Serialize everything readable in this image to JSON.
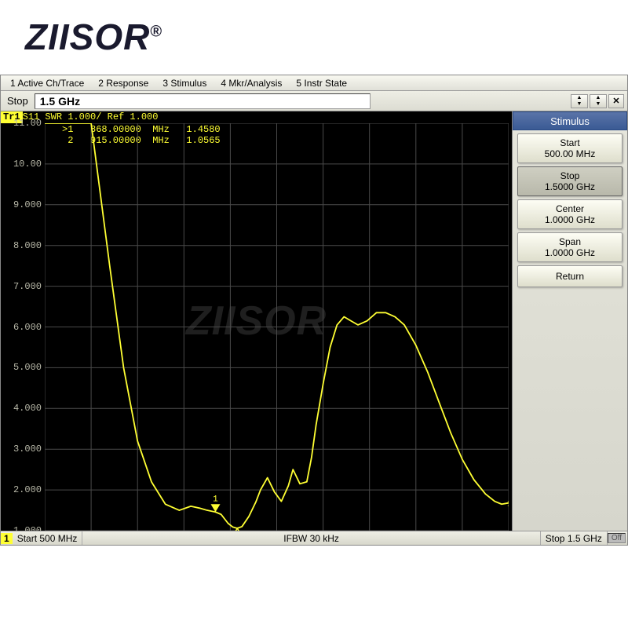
{
  "logo": "ZIISOR",
  "menubar": [
    "1 Active Ch/Trace",
    "2 Response",
    "3 Stimulus",
    "4 Mkr/Analysis",
    "5 Instr State"
  ],
  "toolbar": {
    "label": "Stop",
    "value": "1.5 GHz"
  },
  "trace_header": {
    "tag": "Tr1",
    "text": " S11 SWR 1.000/ Ref 1.000"
  },
  "marker_text": ">1   868.00000  MHz   1.4580\n 2   915.00000  MHz   1.0565",
  "chart": {
    "type": "line",
    "x_start_hz": 500000000.0,
    "x_stop_hz": 1500000000.0,
    "y_min": 1.0,
    "y_max": 11.0,
    "y_step": 1.0,
    "y_tick_labels": [
      "11.00",
      "10.00",
      "9.000",
      "8.000",
      "7.000",
      "6.000",
      "5.000",
      "4.000",
      "3.000",
      "2.000",
      "1.000"
    ],
    "grid_color": "#4a4a4a",
    "trace_color": "#ffff33",
    "bg": "#000000",
    "markers": [
      {
        "id": 1,
        "freq_hz": 868000000.0,
        "swr": 1.458,
        "symbol": "▽"
      },
      {
        "id": 2,
        "freq_hz": 915000000.0,
        "swr": 1.0565,
        "symbol": "△"
      }
    ],
    "points": [
      [
        500,
        20.0
      ],
      [
        530,
        20.0
      ],
      [
        560,
        18.0
      ],
      [
        600,
        12.0
      ],
      [
        640,
        7.5
      ],
      [
        670,
        5.0
      ],
      [
        700,
        3.2
      ],
      [
        730,
        2.2
      ],
      [
        760,
        1.65
      ],
      [
        790,
        1.5
      ],
      [
        815,
        1.6
      ],
      [
        835,
        1.55
      ],
      [
        850,
        1.5
      ],
      [
        868,
        1.458
      ],
      [
        880,
        1.4
      ],
      [
        895,
        1.18
      ],
      [
        905,
        1.09
      ],
      [
        915,
        1.057
      ],
      [
        925,
        1.1
      ],
      [
        940,
        1.35
      ],
      [
        955,
        1.7
      ],
      [
        965,
        2.0
      ],
      [
        980,
        2.3
      ],
      [
        995,
        1.95
      ],
      [
        1010,
        1.72
      ],
      [
        1025,
        2.1
      ],
      [
        1035,
        2.5
      ],
      [
        1050,
        2.15
      ],
      [
        1065,
        2.2
      ],
      [
        1075,
        2.8
      ],
      [
        1085,
        3.6
      ],
      [
        1100,
        4.6
      ],
      [
        1115,
        5.5
      ],
      [
        1130,
        6.05
      ],
      [
        1145,
        6.25
      ],
      [
        1160,
        6.15
      ],
      [
        1175,
        6.05
      ],
      [
        1195,
        6.15
      ],
      [
        1215,
        6.35
      ],
      [
        1235,
        6.35
      ],
      [
        1255,
        6.25
      ],
      [
        1275,
        6.05
      ],
      [
        1300,
        5.55
      ],
      [
        1325,
        4.9
      ],
      [
        1350,
        4.15
      ],
      [
        1375,
        3.4
      ],
      [
        1400,
        2.75
      ],
      [
        1425,
        2.25
      ],
      [
        1450,
        1.9
      ],
      [
        1470,
        1.72
      ],
      [
        1485,
        1.65
      ],
      [
        1500,
        1.68
      ]
    ],
    "trace_end_label": "1"
  },
  "sidebar": {
    "title": "Stimulus",
    "buttons": [
      {
        "label": "Start",
        "value": "500.00 MHz",
        "selected": false
      },
      {
        "label": "Stop",
        "value": "1.5000 GHz",
        "selected": true
      },
      {
        "label": "Center",
        "value": "1.0000 GHz",
        "selected": false
      },
      {
        "label": "Span",
        "value": "1.0000 GHz",
        "selected": false
      },
      {
        "label": "Return",
        "value": "",
        "selected": false,
        "single": true
      }
    ]
  },
  "status": {
    "ch": "1",
    "left": "Start 500 MHz",
    "mid": "IFBW 30 kHz",
    "right": "Stop 1.5 GHz",
    "off": "Off"
  },
  "watermark": "ZIISOR"
}
